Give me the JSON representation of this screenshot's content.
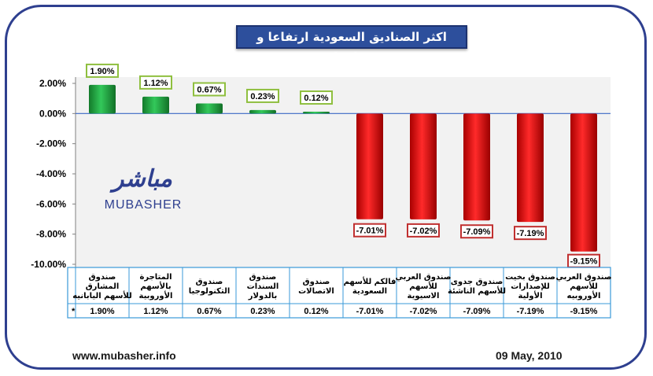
{
  "title": "اكثر الصناديق السعودية ارتفاعا و تراجعا",
  "logo": {
    "arabic": "مباشر",
    "latin": "MUBASHER"
  },
  "footer": {
    "website": "www.mubasher.info",
    "date": "09 May, 2010"
  },
  "colors": {
    "positive": "#1e9a3a",
    "negative": "#e01010",
    "frame": "#2e3f8f",
    "title_bg": "#2d4f9c"
  },
  "chart_data": {
    "type": "bar",
    "categories": [
      [
        "صندوق",
        "المشارق",
        "للأسهم اليابانيه"
      ],
      [
        "المتاجرة",
        "بالأسهم",
        "الأوروبية"
      ],
      [
        "صندوق",
        "التكنولوجيا"
      ],
      [
        "صندوق",
        "السندات",
        "بالدولار"
      ],
      [
        "صندوق",
        "الاتصالات"
      ],
      [
        "فالكم للأسهم",
        "السعودية"
      ],
      [
        "صندوق العربي",
        "للأسهم",
        "الاسيوية"
      ],
      [
        "صندوق جدوى",
        "للأسهم الناشئة"
      ],
      [
        "صندوق بخيت",
        "للإصدارات",
        "الأولية"
      ],
      [
        "صندوق العربي",
        "للأسهم",
        "الأوروبيه"
      ]
    ],
    "values": [
      1.9,
      1.12,
      0.67,
      0.23,
      0.12,
      -7.01,
      -7.02,
      -7.09,
      -7.19,
      -9.15
    ],
    "labels": [
      "1.90%",
      "1.12%",
      "0.67%",
      "0.23%",
      "0.12%",
      "-7.01%",
      "-7.02%",
      "-7.09%",
      "-7.19%",
      "-9.15%"
    ],
    "yticks": [
      "2.00%",
      "0.00%",
      "-2.00%",
      "-4.00%",
      "-6.00%",
      "-8.00%",
      "-10.00%"
    ],
    "ytick_values": [
      2,
      0,
      -2,
      -4,
      -6,
      -8,
      -10
    ],
    "ylim": [
      -10,
      2
    ],
    "table_marker": "*",
    "grid": false,
    "legend": "none"
  }
}
